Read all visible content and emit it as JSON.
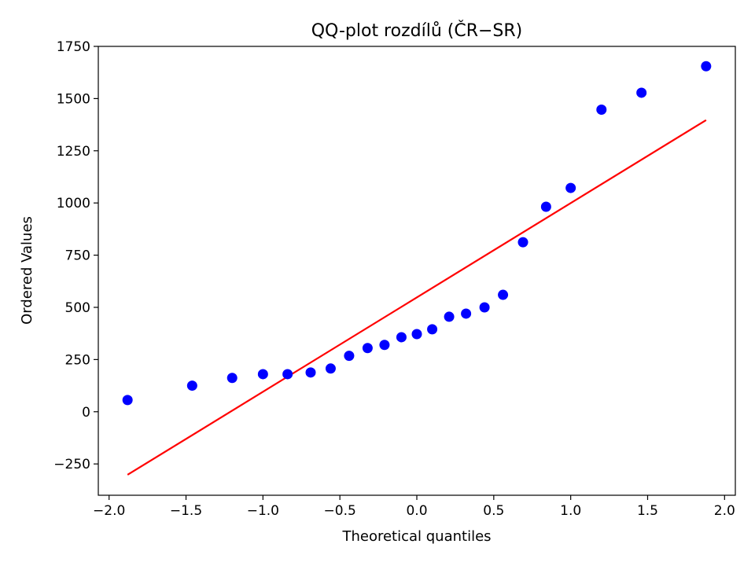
{
  "chart_data": {
    "type": "scatter",
    "title": "QQ-plot rozdílů (ČR−SR)",
    "xlabel": "Theoretical quantiles",
    "ylabel": "Ordered Values",
    "xlim": [
      -2.07,
      2.07
    ],
    "ylim": [
      -400,
      1750
    ],
    "xticks": [
      -2.0,
      -1.5,
      -1.0,
      -0.5,
      0.0,
      0.5,
      1.0,
      1.5,
      2.0
    ],
    "xtick_labels": [
      "−2.0",
      "−1.5",
      "−1.0",
      "−0.5",
      "0.0",
      "0.5",
      "1.0",
      "1.5",
      "2.0"
    ],
    "yticks": [
      -250,
      0,
      250,
      500,
      750,
      1000,
      1250,
      1500,
      1750
    ],
    "ytick_labels": [
      "−250",
      "0",
      "250",
      "500",
      "750",
      "1000",
      "1250",
      "1500",
      "1750"
    ],
    "grid": false,
    "series": [
      {
        "marker": "circle",
        "color": "#0000ff",
        "x": [
          -1.88,
          -1.46,
          -1.2,
          -1.0,
          -0.84,
          -0.69,
          -0.56,
          -0.44,
          -0.32,
          -0.21,
          -0.1,
          0.0,
          0.1,
          0.21,
          0.32,
          0.44,
          0.56,
          0.69,
          0.84,
          1.0,
          1.2,
          1.46,
          1.88
        ],
        "y": [
          56,
          125,
          162,
          180,
          180,
          188,
          207,
          268,
          305,
          320,
          357,
          372,
          395,
          455,
          470,
          500,
          560,
          812,
          982,
          1072,
          1447,
          1528,
          1655
        ]
      },
      {
        "type": "line",
        "color": "#ff0000",
        "x": [
          -1.88,
          1.88
        ],
        "y": [
          -302,
          1397
        ]
      }
    ]
  }
}
